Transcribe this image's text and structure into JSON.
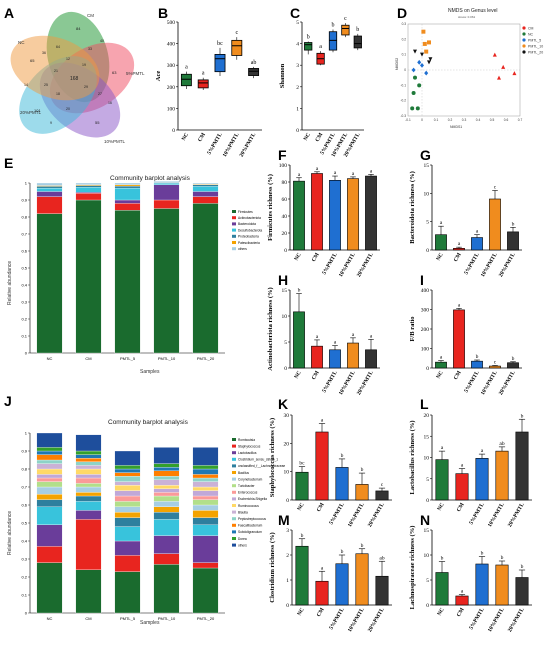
{
  "panels": {
    "A": {
      "letter": "A",
      "groups": [
        "NC",
        "CM",
        "5%PMTL",
        "10%PMTL",
        "20%PMTL"
      ],
      "center": "168",
      "petal_values": [
        "65",
        "84",
        "63",
        "55",
        "101"
      ],
      "other_values": [
        "64",
        "33",
        "27",
        "20",
        "25",
        "12",
        "19",
        "29",
        "18",
        "21",
        "36",
        "40",
        "16",
        "9",
        "14"
      ]
    },
    "D": {
      "letter": "D",
      "title": "NMDS on Genus level",
      "subtitle": "stress: 0.061",
      "xlabel": "NMDS1",
      "ylabel": "NMDS2",
      "legend": [
        "CM",
        "NC",
        "PMTL_5",
        "PMTL_10",
        "PMTL_20"
      ]
    },
    "E": {
      "letter": "E",
      "title": "Community barplot analysis",
      "xlabel": "Samples",
      "ylabel": "Relative abundance"
    },
    "J": {
      "letter": "J",
      "title": "Community barplot analysis",
      "xlabel": "Samples",
      "ylabel": "Relative abundance"
    }
  },
  "chart_data": [
    {
      "panel": "B",
      "type": "box",
      "ylabel": "Ace",
      "ylim": [
        0,
        500
      ],
      "yticks": [
        0,
        100,
        200,
        300,
        400,
        500
      ],
      "categories": [
        "NC",
        "CM",
        "5%PMTL",
        "10%PMTL",
        "20%PMTL"
      ],
      "boxes": [
        {
          "min": 190,
          "q1": 205,
          "median": 235,
          "q3": 258,
          "max": 270
        },
        {
          "min": 185,
          "q1": 195,
          "median": 218,
          "q3": 232,
          "max": 242
        },
        {
          "min": 250,
          "q1": 270,
          "median": 330,
          "q3": 350,
          "max": 380
        },
        {
          "min": 325,
          "q1": 345,
          "median": 390,
          "q3": 415,
          "max": 430
        },
        {
          "min": 240,
          "q1": 252,
          "median": 272,
          "q3": 285,
          "max": 292
        }
      ],
      "letters": [
        "a",
        "a",
        "bc",
        "c",
        "ab"
      ],
      "colors": [
        "#1f7a3a",
        "#e8251f",
        "#1f6fd1",
        "#f08c1e",
        "#333333"
      ]
    },
    {
      "panel": "C",
      "type": "box",
      "ylabel": "Shannon",
      "ylim": [
        0,
        5
      ],
      "yticks": [
        0,
        1,
        2,
        3,
        4,
        5
      ],
      "categories": [
        "NC",
        "CM",
        "5%PMTL",
        "10%PMTL",
        "20%PMTL"
      ],
      "boxes": [
        {
          "min": 3.5,
          "q1": 3.7,
          "median": 3.95,
          "q3": 4.05,
          "max": 4.1
        },
        {
          "min": 3.0,
          "q1": 3.05,
          "median": 3.3,
          "q3": 3.55,
          "max": 3.65
        },
        {
          "min": 3.6,
          "q1": 3.7,
          "median": 4.15,
          "q3": 4.55,
          "max": 4.65
        },
        {
          "min": 4.3,
          "q1": 4.4,
          "median": 4.7,
          "q3": 4.85,
          "max": 4.95
        },
        {
          "min": 3.7,
          "q1": 3.8,
          "median": 4.0,
          "q3": 4.35,
          "max": 4.45
        }
      ],
      "letters": [
        "b",
        "a",
        "b",
        "c",
        "b"
      ],
      "colors": [
        "#1f7a3a",
        "#e8251f",
        "#1f6fd1",
        "#f08c1e",
        "#333333"
      ]
    },
    {
      "panel": "D",
      "type": "scatter",
      "xlim": [
        -0.1,
        0.7
      ],
      "ylim": [
        -0.3,
        0.3
      ],
      "xticks": [
        "-0.1",
        "0",
        "0.1",
        "0.2",
        "0.3",
        "0.4",
        "0.5",
        "0.6",
        "0.7"
      ],
      "yticks": [
        "0.3",
        "0.2",
        "0.1",
        "0",
        "-0.1",
        "-0.2",
        "-0.3"
      ],
      "series": [
        {
          "name": "CM",
          "color": "#e8251f",
          "marker": "triangle",
          "points": [
            [
              0.52,
              0.1
            ],
            [
              0.58,
              0.02
            ],
            [
              0.66,
              -0.02
            ],
            [
              0.55,
              -0.05
            ]
          ]
        },
        {
          "name": "NC",
          "color": "#1f7a3a",
          "marker": "circle",
          "points": [
            [
              -0.05,
              -0.05
            ],
            [
              -0.02,
              -0.1
            ],
            [
              -0.06,
              -0.15
            ],
            [
              -0.03,
              -0.25
            ],
            [
              -0.07,
              -0.25
            ]
          ]
        },
        {
          "name": "PMTL_5",
          "color": "#1f6fd1",
          "marker": "diamond",
          "points": [
            [
              -0.02,
              0.05
            ],
            [
              0.03,
              -0.02
            ],
            [
              -0.06,
              0.0
            ],
            [
              0.0,
              0.03
            ]
          ]
        },
        {
          "name": "PMTL_10",
          "color": "#f08c1e",
          "marker": "square",
          "points": [
            [
              0.01,
              0.25
            ],
            [
              0.02,
              0.17
            ],
            [
              0.05,
              0.18
            ],
            [
              0.03,
              0.12
            ]
          ]
        },
        {
          "name": "PMTL_20",
          "color": "#111111",
          "marker": "triangle-down",
          "points": [
            [
              -0.05,
              0.12
            ],
            [
              0.0,
              0.1
            ],
            [
              0.05,
              0.05
            ],
            [
              0.06,
              0.07
            ]
          ]
        }
      ]
    },
    {
      "panel": "E",
      "type": "stacked-bar",
      "ylim": [
        0,
        1
      ],
      "yticks": [
        "0",
        "0.1",
        "0.2",
        "0.3",
        "0.4",
        "0.5",
        "0.6",
        "0.7",
        "0.8",
        "0.9",
        "1"
      ],
      "categories": [
        "NC",
        "CM",
        "PMTL_5",
        "PMTL_10",
        "PMTL_20"
      ],
      "series": [
        {
          "name": "Firmicutes",
          "color": "#1a6b2e",
          "values": [
            0.82,
            0.9,
            0.84,
            0.85,
            0.88
          ]
        },
        {
          "name": "Actinobacteriota",
          "color": "#e8251f",
          "values": [
            0.1,
            0.04,
            0.04,
            0.05,
            0.04
          ]
        },
        {
          "name": "Bacteroidota",
          "color": "#6a3d9a",
          "values": [
            0.03,
            0.005,
            0.02,
            0.09,
            0.03
          ]
        },
        {
          "name": "Desulfobacterota",
          "color": "#38c3dc",
          "values": [
            0.02,
            0.03,
            0.07,
            0.008,
            0.03
          ]
        },
        {
          "name": "Proteobacteria",
          "color": "#2e7f9e",
          "values": [
            0.01,
            0.01,
            0.012,
            0.005,
            0.01
          ]
        },
        {
          "name": "Patescibacteria",
          "color": "#f4a300",
          "values": [
            0.005,
            0.005,
            0.008,
            0.002,
            0.004
          ]
        },
        {
          "name": "others",
          "color": "#a6cee3",
          "values": [
            0.015,
            0.01,
            0.01,
            0.005,
            0.006
          ]
        }
      ]
    },
    {
      "panel": "F",
      "type": "bar",
      "ylabel": "Firmicutes richness (%)",
      "ylim": [
        0,
        100
      ],
      "yticks": [
        0,
        20,
        40,
        60,
        80,
        100
      ],
      "categories": [
        "NC",
        "CM",
        "5%PMTL",
        "10%PMTL",
        "20%PMTL"
      ],
      "values": [
        81,
        90,
        82,
        84,
        87
      ],
      "errors": [
        4,
        2,
        5,
        2,
        2
      ],
      "letters": [
        "a",
        "a",
        "a",
        "a",
        "a"
      ],
      "colors": [
        "#1f7a3a",
        "#e8251f",
        "#1f6fd1",
        "#f08c1e",
        "#333333"
      ]
    },
    {
      "panel": "G",
      "type": "bar",
      "ylabel": "Bacteroidota richness (%)",
      "ylim": [
        0,
        15
      ],
      "yticks": [
        0,
        5,
        10,
        15
      ],
      "categories": [
        "NC",
        "CM",
        "5%PMTL",
        "10%PMTL",
        "20%PMTL"
      ],
      "values": [
        2.7,
        0.3,
        2.2,
        9,
        3.2
      ],
      "errors": [
        1.5,
        0.2,
        0.5,
        1.5,
        0.8
      ],
      "letters": [
        "a",
        "a",
        "a",
        "c",
        "b"
      ],
      "colors": [
        "#1f7a3a",
        "#e8251f",
        "#1f6fd1",
        "#f08c1e",
        "#333333"
      ]
    },
    {
      "panel": "H",
      "type": "bar",
      "ylabel": "Actinobacteriota richness (%)",
      "ylim": [
        0,
        15
      ],
      "yticks": [
        0,
        5,
        10,
        15
      ],
      "categories": [
        "NC",
        "CM",
        "5%PMTL",
        "10%PMTL",
        "20%PMTL"
      ],
      "values": [
        10.8,
        4.2,
        3.5,
        4.8,
        3.5
      ],
      "errors": [
        3.5,
        1.2,
        0.8,
        1,
        2
      ],
      "letters": [
        "b",
        "a",
        "a",
        "a",
        "a"
      ],
      "colors": [
        "#1f7a3a",
        "#e8251f",
        "#1f6fd1",
        "#f08c1e",
        "#333333"
      ]
    },
    {
      "panel": "I",
      "type": "bar",
      "ylabel": "F/B ratio",
      "ylim": [
        0,
        400
      ],
      "yticks": [
        0,
        100,
        200,
        300,
        400
      ],
      "categories": [
        "NC",
        "CM",
        "5%PMTL",
        "10%PMTL",
        "20%PMTL"
      ],
      "values": [
        30,
        298,
        35,
        10,
        27
      ],
      "errors": [
        8,
        8,
        6,
        3,
        5
      ],
      "letters": [
        "a",
        "a",
        "b",
        "c",
        "b"
      ],
      "colors": [
        "#1f7a3a",
        "#e8251f",
        "#1f6fd1",
        "#f08c1e",
        "#333333"
      ]
    },
    {
      "panel": "J",
      "type": "stacked-bar",
      "ylim": [
        0,
        1
      ],
      "yticks": [
        "0",
        "0.1",
        "0.2",
        "0.3",
        "0.4",
        "0.5",
        "0.6",
        "0.7",
        "0.8",
        "0.9",
        "1"
      ],
      "categories": [
        "NC",
        "CM",
        "PMTL_5",
        "PMTL_10",
        "PMTL_20"
      ],
      "series": [
        {
          "name": "Romboutsia",
          "color": "#1a6b2e",
          "values": [
            0.28,
            0.24,
            0.23,
            0.27,
            0.25
          ]
        },
        {
          "name": "Staphylococcus",
          "color": "#e8251f",
          "values": [
            0.09,
            0.28,
            0.09,
            0.06,
            0.03
          ]
        },
        {
          "name": "Lactobacillus",
          "color": "#6a3d9a",
          "values": [
            0.12,
            0.05,
            0.08,
            0.1,
            0.15
          ]
        },
        {
          "name": "Clostridium_sensu_stricto_1",
          "color": "#38c3dc",
          "values": [
            0.1,
            0.05,
            0.08,
            0.09,
            0.06
          ]
        },
        {
          "name": "unclassified_f__Lachnospiraceae",
          "color": "#2e7f9e",
          "values": [
            0.04,
            0.03,
            0.05,
            0.04,
            0.04
          ]
        },
        {
          "name": "Bacillus",
          "color": "#f4a300",
          "values": [
            0.03,
            0.02,
            0.03,
            0.03,
            0.04
          ]
        },
        {
          "name": "Corynebacterium",
          "color": "#a6cee3",
          "values": [
            0.04,
            0.03,
            0.03,
            0.03,
            0.03
          ]
        },
        {
          "name": "Turicibacter",
          "color": "#b2df8a",
          "values": [
            0.03,
            0.02,
            0.03,
            0.03,
            0.03
          ]
        },
        {
          "name": "Enterococcus",
          "color": "#fb9a99",
          "values": [
            0.02,
            0.03,
            0.03,
            0.02,
            0.02
          ]
        },
        {
          "name": "Escherichia-Shigella",
          "color": "#c0a8d8",
          "values": [
            0.02,
            0.02,
            0.03,
            0.02,
            0.03
          ]
        },
        {
          "name": "Ruminococcus",
          "color": "#ffd966",
          "values": [
            0.03,
            0.03,
            0.03,
            0.02,
            0.02
          ]
        },
        {
          "name": "Blautia",
          "color": "#cab2d6",
          "values": [
            0.03,
            0.02,
            0.02,
            0.03,
            0.03
          ]
        },
        {
          "name": "Peptostreptococcus",
          "color": "#8dd3c7",
          "values": [
            0.02,
            0.02,
            0.03,
            0.02,
            0.02
          ]
        },
        {
          "name": "Faecalibacterium",
          "color": "#ff7f00",
          "values": [
            0.03,
            0.02,
            0.02,
            0.03,
            0.02
          ]
        },
        {
          "name": "Subdoligranulum",
          "color": "#1f78b4",
          "values": [
            0.02,
            0.02,
            0.02,
            0.02,
            0.03
          ]
        },
        {
          "name": "Dorea",
          "color": "#33a02c",
          "values": [
            0.02,
            0.02,
            0.02,
            0.02,
            0.02
          ]
        },
        {
          "name": "others",
          "color": "#1e4e9c",
          "values": [
            0.08,
            0.09,
            0.08,
            0.09,
            0.1
          ]
        }
      ]
    },
    {
      "panel": "K",
      "type": "bar",
      "ylabel": "Staphylococcus richness (%)",
      "ylim": [
        0,
        30
      ],
      "yticks": [
        0,
        10,
        20,
        30
      ],
      "categories": [
        "NC",
        "CM",
        "5%PMTL",
        "10%PMTL",
        "20%PMTL"
      ],
      "values": [
        9.8,
        24,
        11.5,
        5.5,
        3.2
      ],
      "errors": [
        2,
        3,
        3,
        4,
        1
      ],
      "letters": [
        "bc",
        "a",
        "b",
        "b",
        "c"
      ],
      "colors": [
        "#1f7a3a",
        "#e8251f",
        "#1f6fd1",
        "#f08c1e",
        "#333333"
      ]
    },
    {
      "panel": "L",
      "type": "bar",
      "ylabel": "Lactobacillus richness (%)",
      "ylim": [
        0,
        20
      ],
      "yticks": [
        0,
        5,
        10,
        15,
        20
      ],
      "categories": [
        "NC",
        "CM",
        "5%PMTL",
        "10%PMTL",
        "20%PMTL"
      ],
      "values": [
        9.5,
        6.2,
        9.8,
        11.5,
        16
      ],
      "errors": [
        2,
        1.2,
        1,
        1,
        3
      ],
      "letters": [
        "a",
        "a",
        "a",
        "ab",
        "b"
      ],
      "colors": [
        "#1f7a3a",
        "#e8251f",
        "#1f6fd1",
        "#f08c1e",
        "#333333"
      ]
    },
    {
      "panel": "M",
      "type": "bar",
      "ylabel": "Clostridium richness (%)",
      "ylim": [
        0,
        3
      ],
      "yticks": [
        0,
        1,
        2,
        3
      ],
      "categories": [
        "NC",
        "CM",
        "5%PMTL",
        "10%PMTL",
        "20%PMTL"
      ],
      "values": [
        2.35,
        0.95,
        1.65,
        2.05,
        1.15
      ],
      "errors": [
        0.3,
        0.4,
        0.35,
        0.2,
        0.6
      ],
      "letters": [
        "b",
        "a",
        "b",
        "b",
        "ab"
      ],
      "colors": [
        "#1f7a3a",
        "#e8251f",
        "#1f6fd1",
        "#f08c1e",
        "#333333"
      ]
    },
    {
      "panel": "N",
      "type": "bar",
      "ylabel": "Lachnospiraceae richness (%)",
      "ylim": [
        0,
        15
      ],
      "yticks": [
        0,
        5,
        10,
        15
      ],
      "categories": [
        "NC",
        "CM",
        "5%PMTL",
        "10%PMTL",
        "20%PMTL"
      ],
      "values": [
        6.5,
        1.8,
        8.2,
        8,
        5.5
      ],
      "errors": [
        2.2,
        0.3,
        1.5,
        0.8,
        1.5
      ],
      "letters": [
        "b",
        "a",
        "b",
        "b",
        "b"
      ],
      "colors": [
        "#1f7a3a",
        "#e8251f",
        "#1f6fd1",
        "#f08c1e",
        "#333333"
      ]
    }
  ]
}
